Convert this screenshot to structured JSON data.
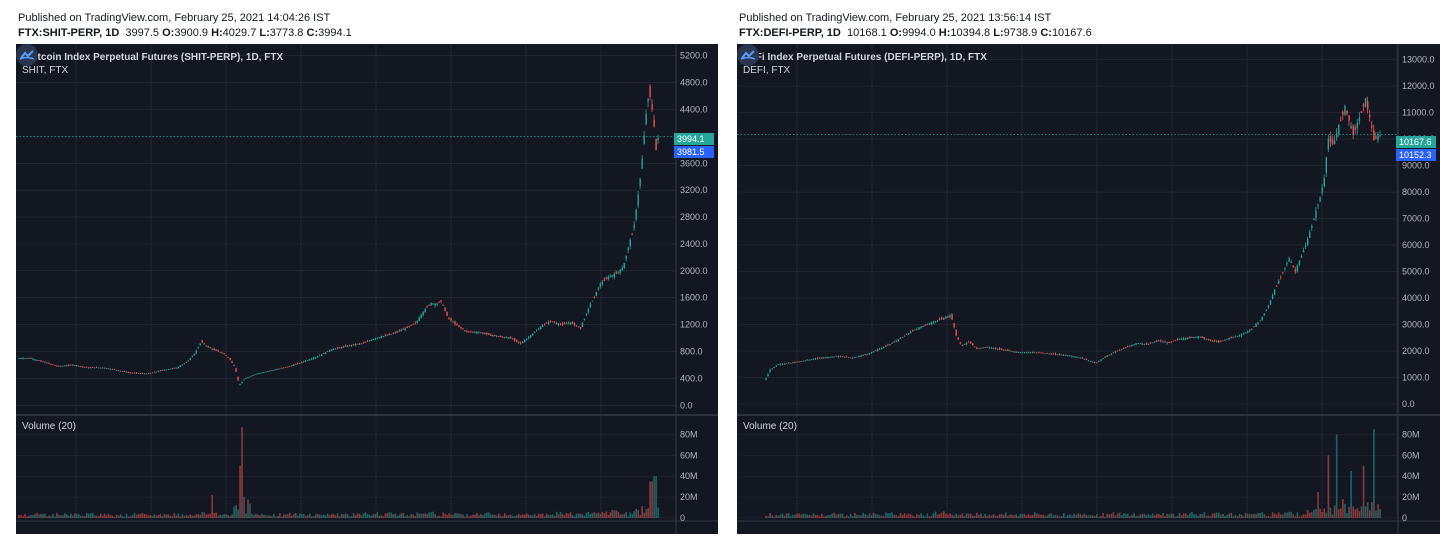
{
  "left": {
    "published": "Published on TradingView.com, February 25, 2021 14:04:26 IST",
    "ohlc": {
      "symbol": "FTX:SHIT-PERP, 1D",
      "o_label": "O:",
      "o": "3900.9",
      "h_label": "H:",
      "h": "4029.7",
      "l_label": "L:",
      "l": "3773.8",
      "c_label": "C:",
      "c": "3994.1",
      "value": "3997.5"
    },
    "title": "Shitcoin Index Perpetual Futures (SHIT-PERP), 1D, FTX",
    "subtitle": "SHIT, FTX",
    "volume_label": "Volume (20)",
    "last_price_tag": "3994.1",
    "mark_price_tag": "3981.5"
  },
  "right": {
    "published": "Published on TradingView.com, February 25, 2021 13:56:14 IST",
    "ohlc": {
      "symbol": "FTX:DEFI-PERP, 1D",
      "o_label": "O:",
      "o": "9994.0",
      "h_label": "H:",
      "h": "10394.8",
      "l_label": "L:",
      "l": "9738.9",
      "c_label": "C:",
      "c": "10167.6",
      "value": "10168.1"
    },
    "title": "DeFi Index Perpetual Futures (DEFI-PERP), 1D, FTX",
    "subtitle": "DEFI, FTX",
    "volume_label": "Volume (20)",
    "last_price_tag": "10167.6",
    "mark_price_tag": "10152.3"
  },
  "colors": {
    "background": "#131722",
    "grid": "#2a2e39",
    "up": "#26a69a",
    "down": "#ef5350",
    "axis_text": "#b2b5be",
    "tag_last": "#26a69a",
    "tag_mark": "#2962ff"
  },
  "icon": "tradingview-cloud-logo",
  "chart_data": [
    {
      "type": "line",
      "title": "Shitcoin Index Perpetual Futures (SHIT-PERP), 1D, FTX",
      "price_axis_ticks": [
        "0.0",
        "400.0",
        "800.0",
        "1200.0",
        "1600.0",
        "2000.0",
        "2400.0",
        "2800.0",
        "3200.0",
        "3600.0",
        "4000.0",
        "4400.0",
        "4800.0",
        "5200.0"
      ],
      "ylim": [
        -100,
        5300
      ],
      "close_path": [
        [
          0,
          700
        ],
        [
          12,
          700
        ],
        [
          24,
          650
        ],
        [
          40,
          580
        ],
        [
          55,
          600
        ],
        [
          70,
          560
        ],
        [
          85,
          560
        ],
        [
          100,
          520
        ],
        [
          115,
          480
        ],
        [
          130,
          470
        ],
        [
          145,
          520
        ],
        [
          160,
          560
        ],
        [
          170,
          650
        ],
        [
          178,
          780
        ],
        [
          184,
          950
        ],
        [
          190,
          870
        ],
        [
          198,
          820
        ],
        [
          205,
          780
        ],
        [
          212,
          700
        ],
        [
          218,
          560
        ],
        [
          222,
          300
        ],
        [
          228,
          400
        ],
        [
          240,
          470
        ],
        [
          255,
          520
        ],
        [
          270,
          570
        ],
        [
          285,
          640
        ],
        [
          300,
          720
        ],
        [
          315,
          830
        ],
        [
          330,
          880
        ],
        [
          345,
          920
        ],
        [
          360,
          1000
        ],
        [
          375,
          1060
        ],
        [
          390,
          1150
        ],
        [
          400,
          1230
        ],
        [
          410,
          1450
        ],
        [
          415,
          1520
        ],
        [
          420,
          1500
        ],
        [
          425,
          1550
        ],
        [
          432,
          1300
        ],
        [
          440,
          1200
        ],
        [
          450,
          1100
        ],
        [
          465,
          1080
        ],
        [
          480,
          1030
        ],
        [
          495,
          1000
        ],
        [
          505,
          920
        ],
        [
          512,
          1000
        ],
        [
          520,
          1100
        ],
        [
          528,
          1200
        ],
        [
          535,
          1250
        ],
        [
          545,
          1200
        ],
        [
          555,
          1230
        ],
        [
          565,
          1150
        ],
        [
          575,
          1500
        ],
        [
          585,
          1800
        ],
        [
          592,
          1900
        ],
        [
          600,
          1950
        ],
        [
          608,
          2050
        ],
        [
          614,
          2400
        ],
        [
          618,
          2600
        ],
        [
          622,
          3000
        ],
        [
          626,
          3500
        ],
        [
          630,
          4200
        ],
        [
          634,
          4700
        ],
        [
          638,
          4300
        ],
        [
          641,
          3800
        ],
        [
          643,
          3994
        ]
      ],
      "last_price": 3994.1,
      "volume_axis_ticks": [
        "0",
        "20M",
        "40M",
        "60M",
        "80M"
      ],
      "volume_peaks_M": [
        {
          "x_index": 225,
          "value": 87
        },
        {
          "x_index": 223,
          "value": 50
        },
        {
          "x_index": 640,
          "value": 40
        },
        {
          "x_index": 636,
          "value": 35
        },
        {
          "x_index": 195,
          "value": 22
        }
      ]
    },
    {
      "type": "line",
      "title": "DeFi Index Perpetual Futures (DEFI-PERP), 1D, FTX",
      "price_axis_ticks": [
        "0.0",
        "1000.0",
        "2000.0",
        "3000.0",
        "4000.0",
        "5000.0",
        "6000.0",
        "7000.0",
        "8000.0",
        "9000.0",
        "10000.0",
        "11000.0",
        "12000.0",
        "13000.0"
      ],
      "ylim": [
        -300,
        13400
      ],
      "close_path": [
        [
          25,
          900
        ],
        [
          30,
          1300
        ],
        [
          38,
          1500
        ],
        [
          50,
          1550
        ],
        [
          65,
          1650
        ],
        [
          80,
          1750
        ],
        [
          95,
          1800
        ],
        [
          110,
          1750
        ],
        [
          125,
          1900
        ],
        [
          140,
          2150
        ],
        [
          155,
          2450
        ],
        [
          165,
          2700
        ],
        [
          175,
          2900
        ],
        [
          185,
          3050
        ],
        [
          195,
          3200
        ],
        [
          205,
          3350
        ],
        [
          210,
          2600
        ],
        [
          215,
          2200
        ],
        [
          222,
          2350
        ],
        [
          230,
          2100
        ],
        [
          240,
          2150
        ],
        [
          255,
          2050
        ],
        [
          270,
          1950
        ],
        [
          285,
          1950
        ],
        [
          300,
          1900
        ],
        [
          315,
          1850
        ],
        [
          330,
          1750
        ],
        [
          345,
          1550
        ],
        [
          355,
          1800
        ],
        [
          365,
          2000
        ],
        [
          375,
          2150
        ],
        [
          385,
          2300
        ],
        [
          395,
          2250
        ],
        [
          405,
          2400
        ],
        [
          415,
          2300
        ],
        [
          425,
          2450
        ],
        [
          435,
          2500
        ],
        [
          445,
          2550
        ],
        [
          455,
          2400
        ],
        [
          465,
          2350
        ],
        [
          475,
          2500
        ],
        [
          485,
          2600
        ],
        [
          495,
          2800
        ],
        [
          505,
          3200
        ],
        [
          512,
          3700
        ],
        [
          518,
          4300
        ],
        [
          525,
          4900
        ],
        [
          532,
          5500
        ],
        [
          538,
          5000
        ],
        [
          544,
          5600
        ],
        [
          550,
          6200
        ],
        [
          556,
          7000
        ],
        [
          562,
          7800
        ],
        [
          566,
          8500
        ],
        [
          570,
          10000
        ],
        [
          575,
          9800
        ],
        [
          580,
          10500
        ],
        [
          586,
          11200
        ],
        [
          590,
          10700
        ],
        [
          594,
          10200
        ],
        [
          600,
          10800
        ],
        [
          606,
          11500
        ],
        [
          610,
          10800
        ],
        [
          614,
          10000
        ],
        [
          620,
          10160
        ]
      ],
      "last_price": 10167.6,
      "volume_axis_ticks": [
        "0",
        "20M",
        "40M",
        "60M",
        "80M"
      ],
      "volume_peaks_M": [
        {
          "x_index": 578,
          "value": 80
        },
        {
          "x_index": 614,
          "value": 85
        },
        {
          "x_index": 604,
          "value": 50
        },
        {
          "x_index": 570,
          "value": 60
        },
        {
          "x_index": 592,
          "value": 45
        },
        {
          "x_index": 560,
          "value": 25
        }
      ]
    }
  ]
}
